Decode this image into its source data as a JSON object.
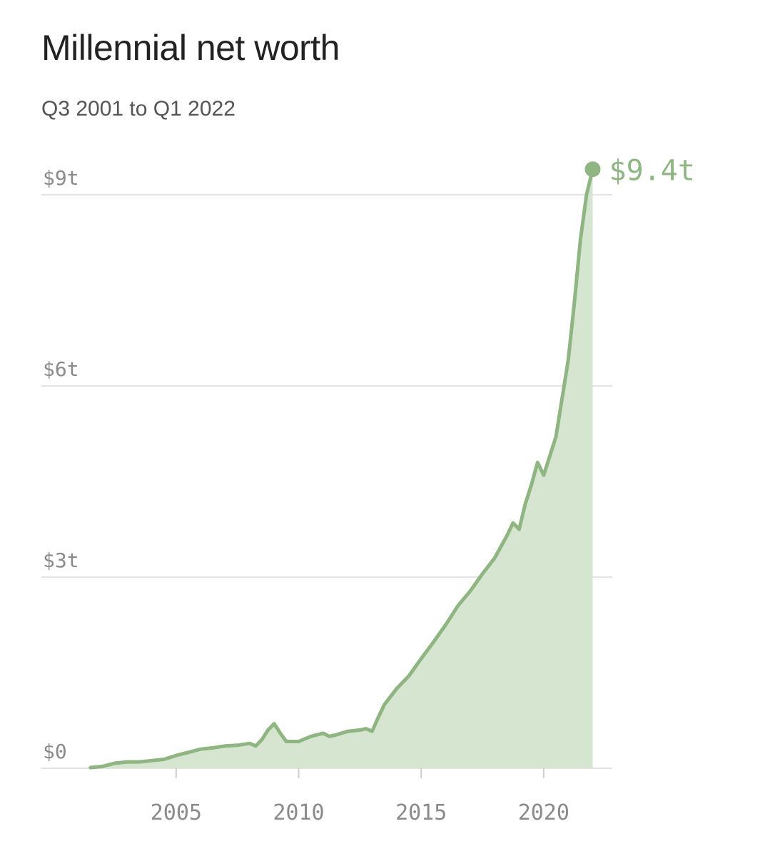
{
  "chart_data": {
    "type": "area",
    "title": "Millennial net worth",
    "subtitle": "Q3 2001 to Q1 2022",
    "xlabel": "",
    "ylabel": "",
    "unit": "trillion USD",
    "xlim": [
      1999.5,
      2022.8
    ],
    "ylim": [
      0,
      9
    ],
    "grid": true,
    "x_ticks": [
      2005,
      2010,
      2015,
      2020
    ],
    "x_tick_labels": [
      "2005",
      "2010",
      "2015",
      "2020"
    ],
    "y_ticks": [
      0,
      3,
      6,
      9
    ],
    "y_tick_labels": [
      "$0",
      "$3t",
      "$6t",
      "$9t"
    ],
    "line_color": "#8fb582",
    "fill_color": "#d6e5cf",
    "grid_color": "#e3e3e3",
    "end_label": "$9.4t",
    "series": [
      {
        "x": [
          2001.5,
          2002.0,
          2002.5,
          2003.0,
          2003.5,
          2004.0,
          2004.5,
          2005.0,
          2005.5,
          2006.0,
          2006.5,
          2007.0,
          2007.5,
          2008.0,
          2008.25,
          2008.5,
          2008.75,
          2009.0,
          2009.25,
          2009.5,
          2010.0,
          2010.5,
          2011.0,
          2011.25,
          2011.5,
          2012.0,
          2012.5,
          2012.75,
          2013.0,
          2013.25,
          2013.5,
          2014.0,
          2014.5,
          2015.0,
          2015.5,
          2016.0,
          2016.5,
          2017.0,
          2017.5,
          2018.0,
          2018.5,
          2018.75,
          2019.0,
          2019.25,
          2019.5,
          2019.75,
          2020.0,
          2020.5,
          2021.0,
          2021.25,
          2021.5,
          2021.75,
          2022.0
        ],
        "y": [
          0.01,
          0.03,
          0.08,
          0.1,
          0.1,
          0.12,
          0.14,
          0.2,
          0.25,
          0.3,
          0.32,
          0.35,
          0.36,
          0.39,
          0.35,
          0.45,
          0.6,
          0.7,
          0.55,
          0.42,
          0.42,
          0.5,
          0.55,
          0.5,
          0.52,
          0.58,
          0.6,
          0.62,
          0.58,
          0.8,
          1.0,
          1.25,
          1.45,
          1.72,
          1.98,
          2.25,
          2.55,
          2.78,
          3.05,
          3.3,
          3.65,
          3.85,
          3.75,
          4.15,
          4.45,
          4.8,
          4.6,
          5.2,
          6.4,
          7.3,
          8.3,
          9.0,
          9.4
        ]
      }
    ]
  }
}
